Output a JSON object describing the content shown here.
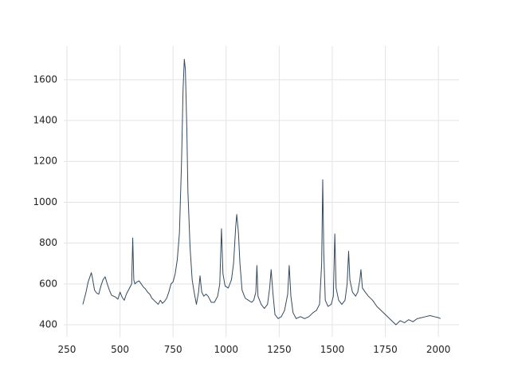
{
  "chart_data": {
    "type": "line",
    "x": [
      325,
      330,
      340,
      350,
      360,
      365,
      370,
      380,
      390,
      400,
      410,
      420,
      430,
      440,
      450,
      460,
      470,
      480,
      490,
      500,
      510,
      520,
      530,
      540,
      550,
      555,
      560,
      565,
      570,
      580,
      590,
      600,
      610,
      620,
      630,
      640,
      650,
      660,
      670,
      680,
      690,
      700,
      710,
      720,
      730,
      740,
      750,
      760,
      770,
      780,
      790,
      797,
      803,
      808,
      815,
      820,
      830,
      840,
      850,
      860,
      870,
      877,
      885,
      895,
      905,
      915,
      930,
      945,
      960,
      970,
      978,
      985,
      995,
      1010,
      1025,
      1035,
      1045,
      1050,
      1058,
      1065,
      1075,
      1090,
      1105,
      1120,
      1130,
      1140,
      1145,
      1150,
      1165,
      1180,
      1195,
      1205,
      1212,
      1220,
      1230,
      1245,
      1260,
      1275,
      1290,
      1297,
      1305,
      1315,
      1330,
      1350,
      1370,
      1390,
      1410,
      1425,
      1440,
      1450,
      1455,
      1460,
      1467,
      1480,
      1495,
      1505,
      1512,
      1518,
      1530,
      1545,
      1560,
      1570,
      1577,
      1583,
      1595,
      1610,
      1620,
      1630,
      1635,
      1642,
      1655,
      1670,
      1690,
      1710,
      1730,
      1750,
      1770,
      1790,
      1800,
      1820,
      1840,
      1860,
      1880,
      1900,
      1920,
      1940,
      1960,
      1980,
      2000,
      2010
    ],
    "values": [
      500,
      520,
      560,
      610,
      640,
      655,
      630,
      570,
      555,
      550,
      590,
      620,
      635,
      600,
      570,
      545,
      540,
      535,
      525,
      560,
      535,
      520,
      550,
      570,
      590,
      600,
      825,
      620,
      600,
      610,
      615,
      600,
      585,
      575,
      560,
      550,
      530,
      520,
      510,
      500,
      520,
      505,
      515,
      530,
      560,
      600,
      610,
      650,
      720,
      850,
      1200,
      1550,
      1700,
      1650,
      1350,
      1050,
      780,
      620,
      555,
      500,
      560,
      640,
      560,
      540,
      550,
      540,
      510,
      510,
      540,
      600,
      870,
      650,
      590,
      580,
      620,
      700,
      880,
      940,
      850,
      700,
      570,
      530,
      520,
      510,
      520,
      560,
      690,
      540,
      500,
      480,
      500,
      580,
      670,
      560,
      450,
      430,
      440,
      470,
      550,
      690,
      540,
      460,
      430,
      440,
      430,
      440,
      460,
      470,
      500,
      700,
      1110,
      750,
      520,
      490,
      500,
      540,
      845,
      580,
      520,
      500,
      520,
      600,
      760,
      620,
      560,
      540,
      560,
      620,
      670,
      580,
      560,
      540,
      520,
      490,
      470,
      450,
      430,
      410,
      400,
      420,
      410,
      425,
      415,
      430,
      435,
      440,
      445,
      440,
      435,
      430
    ],
    "color": "#34495e",
    "xlim": [
      235,
      2097
    ],
    "ylim": [
      340,
      1765
    ],
    "xticks": [
      250,
      500,
      750,
      1000,
      1250,
      1500,
      1750,
      2000
    ],
    "yticks": [
      400,
      600,
      800,
      1000,
      1200,
      1400,
      1600
    ],
    "grid": true
  }
}
